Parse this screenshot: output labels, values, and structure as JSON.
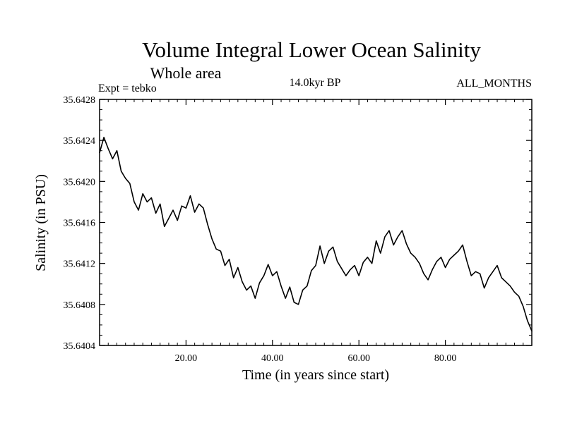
{
  "chart_data": {
    "type": "line",
    "title": "Volume Integral Lower Ocean Salinity",
    "subtitle": "Whole area",
    "experiment": "Expt = tebko",
    "period": "14.0kyr BP",
    "months": "ALL_MONTHS",
    "xlabel": "Time (in years since start)",
    "ylabel": "Salinity (in PSU)",
    "xlim": [
      0,
      100
    ],
    "ylim": [
      35.6404,
      35.6428
    ],
    "x_ticks": [
      {
        "value": 20,
        "label": "20.00"
      },
      {
        "value": 40,
        "label": "40.00"
      },
      {
        "value": 60,
        "label": "60.00"
      },
      {
        "value": 80,
        "label": "80.00"
      }
    ],
    "y_ticks": [
      {
        "value": 35.6404,
        "label": "35.6404"
      },
      {
        "value": 35.6408,
        "label": "35.6408"
      },
      {
        "value": 35.6412,
        "label": "35.6412"
      },
      {
        "value": 35.6416,
        "label": "35.6416"
      },
      {
        "value": 35.642,
        "label": "35.6420"
      },
      {
        "value": 35.6424,
        "label": "35.6424"
      },
      {
        "value": 35.6428,
        "label": "35.6428"
      }
    ],
    "grid": false,
    "series": [
      {
        "name": "Salinity",
        "color": "#000000",
        "x": [
          0,
          1,
          2,
          3,
          4,
          5,
          6,
          7,
          8,
          9,
          10,
          11,
          12,
          13,
          14,
          15,
          16,
          17,
          18,
          19,
          20,
          21,
          22,
          23,
          24,
          25,
          26,
          27,
          28,
          29,
          30,
          31,
          32,
          33,
          34,
          35,
          36,
          37,
          38,
          39,
          40,
          41,
          42,
          43,
          44,
          45,
          46,
          47,
          48,
          49,
          50,
          51,
          52,
          53,
          54,
          55,
          56,
          57,
          58,
          59,
          60,
          61,
          62,
          63,
          64,
          65,
          66,
          67,
          68,
          69,
          70,
          71,
          72,
          73,
          74,
          75,
          76,
          77,
          78,
          79,
          80,
          81,
          82,
          83,
          84,
          85,
          86,
          87,
          88,
          89,
          90,
          91,
          92,
          93,
          94,
          95,
          96,
          97,
          98,
          99,
          100
        ],
        "values": [
          35.64228,
          35.64243,
          35.64232,
          35.64222,
          35.6423,
          35.6421,
          35.64203,
          35.64198,
          35.6418,
          35.64172,
          35.64188,
          35.6418,
          35.64184,
          35.64169,
          35.64178,
          35.64156,
          35.64164,
          35.64172,
          35.64162,
          35.64176,
          35.64174,
          35.64186,
          35.6417,
          35.64178,
          35.64174,
          35.64158,
          35.64144,
          35.64134,
          35.64132,
          35.64118,
          35.64124,
          35.64106,
          35.64116,
          35.64102,
          35.64094,
          35.64098,
          35.64086,
          35.64101,
          35.64108,
          35.64119,
          35.64108,
          35.64112,
          35.64098,
          35.64086,
          35.64097,
          35.64082,
          35.6408,
          35.64094,
          35.64098,
          35.64113,
          35.64118,
          35.64137,
          35.6412,
          35.64132,
          35.64136,
          35.64122,
          35.64115,
          35.64108,
          35.64114,
          35.64118,
          35.64108,
          35.64121,
          35.64126,
          35.6412,
          35.64142,
          35.6413,
          35.64146,
          35.64152,
          35.64138,
          35.64146,
          35.64152,
          35.64139,
          35.6413,
          35.64126,
          35.6412,
          35.6411,
          35.64104,
          35.64114,
          35.64122,
          35.64126,
          35.64116,
          35.64124,
          35.64128,
          35.64132,
          35.64138,
          35.64122,
          35.64108,
          35.64112,
          35.6411,
          35.64096,
          35.64106,
          35.64112,
          35.64118,
          35.64106,
          35.64102,
          35.64098,
          35.64092,
          35.64088,
          35.64078,
          35.64064,
          35.64054
        ]
      }
    ]
  }
}
